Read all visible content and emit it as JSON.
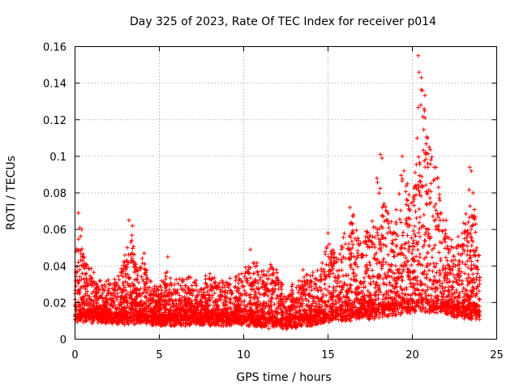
{
  "chart_data": {
    "type": "scatter",
    "title": "Day 325 of 2023, Rate Of TEC Index for receiver p014",
    "xlabel": "GPS time / hours",
    "ylabel": "ROTI / TECUs",
    "xlim": [
      0,
      25
    ],
    "ylim": [
      0,
      0.16
    ],
    "xticks": [
      0,
      5,
      10,
      15,
      20,
      25
    ],
    "yticks": [
      0,
      0.02,
      0.04,
      0.06,
      0.08,
      0.1,
      0.12,
      0.14,
      0.16
    ],
    "xtick_labels": [
      "0",
      "5",
      "10",
      "15",
      "20",
      "25"
    ],
    "ytick_labels": [
      "0",
      "0.02",
      "0.04",
      "0.06",
      "0.08",
      "0.1",
      "0.12",
      "0.14",
      "0.16"
    ],
    "grid": true,
    "marker": "+",
    "color": "#ff0000",
    "envelope": [
      [
        0.0,
        0.045
      ],
      [
        0.3,
        0.062
      ],
      [
        0.6,
        0.045
      ],
      [
        1.0,
        0.036
      ],
      [
        1.5,
        0.03
      ],
      [
        2.0,
        0.032
      ],
      [
        2.5,
        0.035
      ],
      [
        3.0,
        0.045
      ],
      [
        3.3,
        0.064
      ],
      [
        3.6,
        0.04
      ],
      [
        4.0,
        0.045
      ],
      [
        4.5,
        0.03
      ],
      [
        5.0,
        0.028
      ],
      [
        5.5,
        0.038
      ],
      [
        6.0,
        0.03
      ],
      [
        6.5,
        0.032
      ],
      [
        7.0,
        0.033
      ],
      [
        7.5,
        0.03
      ],
      [
        8.0,
        0.035
      ],
      [
        8.5,
        0.032
      ],
      [
        9.0,
        0.03
      ],
      [
        9.5,
        0.033
      ],
      [
        10.0,
        0.038
      ],
      [
        10.5,
        0.048
      ],
      [
        11.0,
        0.035
      ],
      [
        11.5,
        0.04
      ],
      [
        12.0,
        0.038
      ],
      [
        12.5,
        0.025
      ],
      [
        13.0,
        0.03
      ],
      [
        13.5,
        0.038
      ],
      [
        14.0,
        0.035
      ],
      [
        14.5,
        0.04
      ],
      [
        15.0,
        0.055
      ],
      [
        15.5,
        0.045
      ],
      [
        16.0,
        0.06
      ],
      [
        16.5,
        0.068
      ],
      [
        17.0,
        0.055
      ],
      [
        17.5,
        0.06
      ],
      [
        18.0,
        0.09
      ],
      [
        18.5,
        0.072
      ],
      [
        19.0,
        0.07
      ],
      [
        19.5,
        0.095
      ],
      [
        20.0,
        0.068
      ],
      [
        20.3,
        0.12
      ],
      [
        20.5,
        0.155
      ],
      [
        20.8,
        0.13
      ],
      [
        21.0,
        0.11
      ],
      [
        21.5,
        0.09
      ],
      [
        22.0,
        0.06
      ],
      [
        22.5,
        0.05
      ],
      [
        23.0,
        0.06
      ],
      [
        23.5,
        0.093
      ],
      [
        24.0,
        0.04
      ]
    ],
    "baseline": [
      [
        0.0,
        0.012
      ],
      [
        5.0,
        0.01
      ],
      [
        10.0,
        0.01
      ],
      [
        12.5,
        0.008
      ],
      [
        15.0,
        0.012
      ],
      [
        18.0,
        0.014
      ],
      [
        20.5,
        0.018
      ],
      [
        22.0,
        0.016
      ],
      [
        24.0,
        0.012
      ]
    ],
    "peaks": [
      [
        0.2,
        0.069
      ],
      [
        0.4,
        0.06
      ],
      [
        3.2,
        0.065
      ],
      [
        3.4,
        0.062
      ],
      [
        4.1,
        0.047
      ],
      [
        5.5,
        0.045
      ],
      [
        10.4,
        0.049
      ],
      [
        15.0,
        0.058
      ],
      [
        16.3,
        0.072
      ],
      [
        18.1,
        0.101
      ],
      [
        18.2,
        0.099
      ],
      [
        17.9,
        0.088
      ],
      [
        19.4,
        0.1
      ],
      [
        19.5,
        0.092
      ],
      [
        19.7,
        0.085
      ],
      [
        20.35,
        0.155
      ],
      [
        20.4,
        0.146
      ],
      [
        20.5,
        0.128
      ],
      [
        20.6,
        0.136
      ],
      [
        20.7,
        0.126
      ],
      [
        20.75,
        0.121
      ],
      [
        20.9,
        0.11
      ],
      [
        21.0,
        0.105
      ],
      [
        21.1,
        0.098
      ],
      [
        21.3,
        0.094
      ],
      [
        21.5,
        0.088
      ],
      [
        23.4,
        0.094
      ],
      [
        23.5,
        0.092
      ],
      [
        23.6,
        0.08
      ],
      [
        22.0,
        0.065
      ]
    ],
    "point_count": 5200
  }
}
